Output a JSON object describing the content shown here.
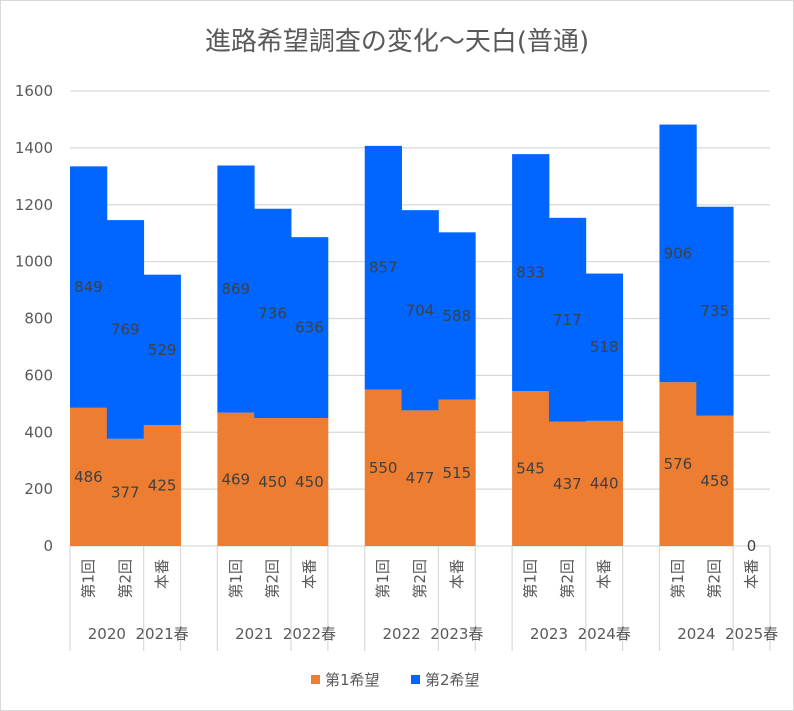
{
  "chart_data": {
    "type": "bar",
    "stacked": true,
    "title": "進路希望調査の変化～天白(普通)",
    "xlabel": "",
    "ylabel": "",
    "ylim": [
      0,
      1600
    ],
    "ytick_step": 200,
    "grid": true,
    "legend_position": "bottom",
    "category_groups": [
      {
        "label": "2020",
        "items": [
          "第1回",
          "第2回"
        ]
      },
      {
        "label": "2021春",
        "items": [
          "本番"
        ]
      },
      {
        "label": "",
        "items": [
          ""
        ]
      },
      {
        "label": "2021",
        "items": [
          "第1回",
          "第2回"
        ]
      },
      {
        "label": "2022春",
        "items": [
          "本番"
        ]
      },
      {
        "label": "",
        "items": [
          ""
        ]
      },
      {
        "label": "2022",
        "items": [
          "第1回",
          "第2回"
        ]
      },
      {
        "label": "2023春",
        "items": [
          "本番"
        ]
      },
      {
        "label": "",
        "items": [
          ""
        ]
      },
      {
        "label": "2023",
        "items": [
          "第1回",
          "第2回"
        ]
      },
      {
        "label": "2024春",
        "items": [
          "本番"
        ]
      },
      {
        "label": "",
        "items": [
          ""
        ]
      },
      {
        "label": "2024",
        "items": [
          "第1回",
          "第2回"
        ]
      },
      {
        "label": "2025春",
        "items": [
          "本番"
        ]
      }
    ],
    "series": [
      {
        "name": "第1希望",
        "color": "#ED7D31",
        "values": [
          486,
          377,
          425,
          null,
          469,
          450,
          450,
          null,
          550,
          477,
          515,
          null,
          545,
          437,
          440,
          null,
          576,
          458,
          0
        ]
      },
      {
        "name": "第2希望",
        "color": "#0066FF",
        "values": [
          849,
          769,
          529,
          null,
          869,
          736,
          636,
          null,
          857,
          704,
          588,
          null,
          833,
          717,
          518,
          null,
          906,
          735,
          null
        ]
      }
    ]
  }
}
